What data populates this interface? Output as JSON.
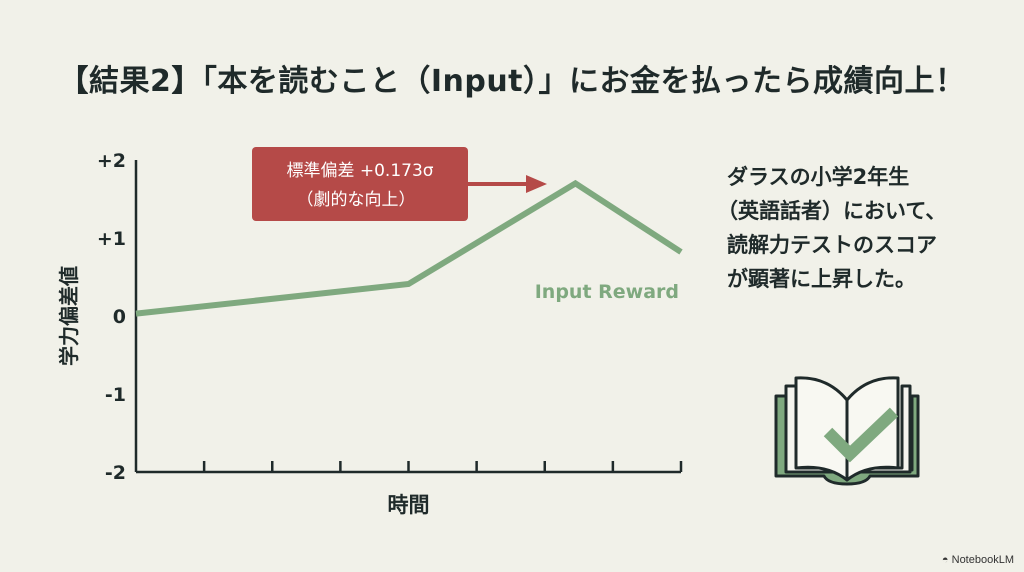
{
  "title": "【結果2】「本を読むこと（Input）」にお金を払ったら成績向上！",
  "chart_data": {
    "type": "line",
    "xlabel": "時間",
    "ylabel": "学力偏差値",
    "ylim": [
      -2,
      2
    ],
    "xlim": [
      0,
      8
    ],
    "yticks": [
      "+2",
      "+1",
      "0",
      "-1",
      "-2"
    ],
    "ytick_values": [
      2,
      1,
      0,
      -1,
      -2
    ],
    "xticks": [
      0,
      1,
      2,
      3,
      4,
      5,
      6,
      7,
      8
    ],
    "grid": false,
    "series": [
      {
        "name": "Input Reward",
        "color": "#7fa97f",
        "x": [
          0,
          4,
          6.45,
          8
        ],
        "y": [
          0.03,
          0.41,
          1.7,
          0.82
        ]
      }
    ],
    "annotation": {
      "line1": "標準偏差 +0.173σ",
      "line2": "（劇的な向上）",
      "color": "#b54a48"
    }
  },
  "description": [
    "ダラスの小学2年生",
    "（英語話者）において、",
    "読解力テストのスコア",
    "が顕著に上昇した。"
  ],
  "brand": "NotebookLM",
  "colors": {
    "background": "#f1f1e9",
    "accent_green": "#7fa97f",
    "accent_red": "#b54a48",
    "ink": "#1f2a2a"
  }
}
